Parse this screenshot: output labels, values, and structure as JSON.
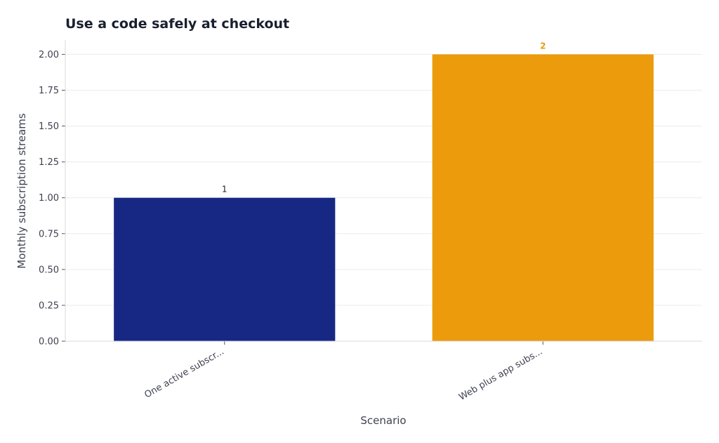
{
  "chart_data": {
    "type": "bar",
    "title": "Use a code safely at checkout",
    "xlabel": "Scenario",
    "ylabel": "Monthly subscription streams",
    "categories": [
      "One active subscr...",
      "Web plus app subs..."
    ],
    "values": [
      1,
      2
    ],
    "data_labels": [
      "1",
      "2"
    ],
    "colors": [
      "#172884",
      "#eb9b0c"
    ],
    "data_label_colors": [
      "#222222",
      "#eb9b0c"
    ],
    "ylim": [
      0,
      2.1
    ],
    "yticks": [
      0.0,
      0.25,
      0.5,
      0.75,
      1.0,
      1.25,
      1.5,
      1.75,
      2.0
    ],
    "ytick_labels": [
      "0.00",
      "0.25",
      "0.50",
      "0.75",
      "1.00",
      "1.25",
      "1.50",
      "1.75",
      "2.00"
    ],
    "grid": true,
    "legend": "none"
  }
}
